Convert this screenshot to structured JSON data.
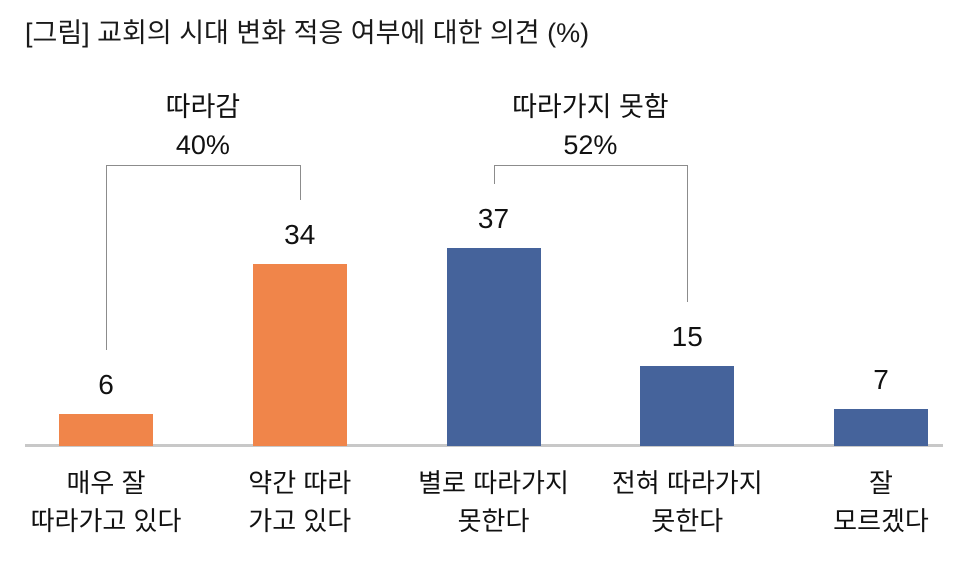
{
  "chart_data": {
    "type": "bar",
    "title": "[그림] 교회의 시대 변화 적응 여부에 대한 의견 (%)",
    "unit": "%",
    "categories": [
      "매우 잘\n따라가고 있다",
      "약간 따라\n가고 있다",
      "별로 따라가지\n못한다",
      "전혀 따라가지\n못한다",
      "잘\n모르겠다"
    ],
    "values": [
      6,
      34,
      37,
      15,
      7
    ],
    "bar_colors": [
      "#F0854A",
      "#F0854A",
      "#45639B",
      "#45639B",
      "#45639B"
    ],
    "ylim": [
      0,
      40
    ],
    "grid": false,
    "value_labels": true,
    "legend": "none",
    "group_brackets": [
      {
        "label": "따라감",
        "total": "40%",
        "from_bar": 0,
        "to_bar": 1
      },
      {
        "label": "따라가지 못함",
        "total": "52%",
        "from_bar": 2,
        "to_bar": 3
      }
    ]
  },
  "colors": {
    "orange_series": "#F0854A",
    "blue_series": "#45639B",
    "axis_line": "#C8C8C8",
    "bracket_line": "#8C8C8C",
    "text": "#111111"
  }
}
